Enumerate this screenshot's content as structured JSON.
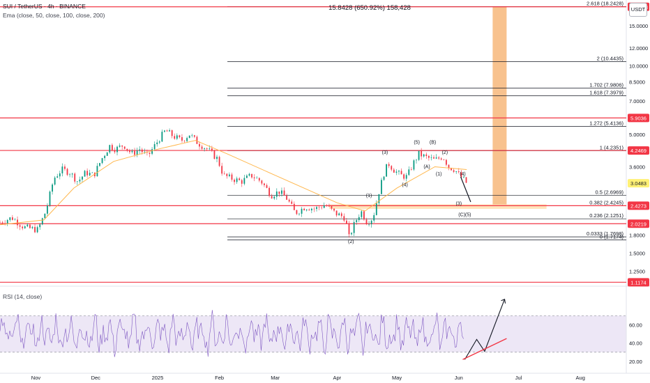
{
  "header": {
    "symbol_line": "SUI / TetherUS · 4h · BINANCE",
    "ema_line": "Ema (close, 50, close, 100, close, 200)",
    "top_stat": "15.8428 (650.92%) 158,428",
    "currency_button": "USDT"
  },
  "rsi_legend": "RSI (14, close)",
  "colors": {
    "candle_up": "#089981",
    "candle_down": "#f23645",
    "ema": "#ffb74d",
    "fib_line": "#131722",
    "support_line": "#f23645",
    "target_box": "#f7b77a",
    "rsi_line": "#7e57c2",
    "rsi_band": "#ede7f6",
    "rsi_ma": "#ffb74d"
  },
  "chart_data": {
    "type": "candlestick",
    "scale": "log",
    "ylim": [
      1.12,
      19.5
    ],
    "xlim": [
      "2024-10-14",
      "2025-08-24"
    ],
    "price_axis_ticks": [
      "18.2013",
      "15.0000",
      "12.0000",
      "10.0000",
      "8.5000",
      "7.0000",
      "5.9036",
      "5.0000",
      "4.2469",
      "3.6000",
      "3.0483",
      "2.4273",
      "2.0219",
      "1.8000",
      "1.5000",
      "1.2500",
      "1.1174"
    ],
    "time_axis": [
      {
        "date": "2024-11-01",
        "label": "Nov"
      },
      {
        "date": "2024-12-01",
        "label": "Dec"
      },
      {
        "date": "2025-01-01",
        "label": "2025"
      },
      {
        "date": "2025-02-01",
        "label": "Feb"
      },
      {
        "date": "2025-03-01",
        "label": "Mar"
      },
      {
        "date": "2025-04-01",
        "label": "Apr"
      },
      {
        "date": "2025-05-01",
        "label": "May"
      },
      {
        "date": "2025-06-01",
        "label": "Jun"
      },
      {
        "date": "2025-07-01",
        "label": "Jul"
      },
      {
        "date": "2025-08-01",
        "label": "Aug"
      }
    ],
    "price_path": [
      [
        "2024-10-14",
        2.05
      ],
      [
        "2024-10-20",
        2.15
      ],
      [
        "2024-10-26",
        1.95
      ],
      [
        "2024-11-02",
        1.9
      ],
      [
        "2024-11-06",
        2.3
      ],
      [
        "2024-11-10",
        3.2
      ],
      [
        "2024-11-14",
        3.5
      ],
      [
        "2024-11-18",
        3.4
      ],
      [
        "2024-11-22",
        3.1
      ],
      [
        "2024-11-26",
        3.4
      ],
      [
        "2024-11-30",
        3.3
      ],
      [
        "2024-12-04",
        3.9
      ],
      [
        "2024-12-08",
        4.45
      ],
      [
        "2024-12-11",
        4.3
      ],
      [
        "2024-12-15",
        4.5
      ],
      [
        "2024-12-19",
        4.1
      ],
      [
        "2024-12-23",
        4.3
      ],
      [
        "2024-12-27",
        4.0
      ],
      [
        "2025-01-02",
        4.8
      ],
      [
        "2025-01-05",
        5.2
      ],
      [
        "2025-01-09",
        4.9
      ],
      [
        "2025-01-13",
        4.7
      ],
      [
        "2025-01-17",
        5.0
      ],
      [
        "2025-01-21",
        4.6
      ],
      [
        "2025-01-26",
        4.3
      ],
      [
        "2025-01-31",
        3.9
      ],
      [
        "2025-02-03",
        3.3
      ],
      [
        "2025-02-07",
        3.2
      ],
      [
        "2025-02-12",
        3.1
      ],
      [
        "2025-02-17",
        3.3
      ],
      [
        "2025-02-22",
        3.1
      ],
      [
        "2025-02-27",
        2.7
      ],
      [
        "2025-03-03",
        2.8
      ],
      [
        "2025-03-07",
        2.6
      ],
      [
        "2025-03-11",
        2.25
      ],
      [
        "2025-03-16",
        2.4
      ],
      [
        "2025-03-21",
        2.35
      ],
      [
        "2025-03-26",
        2.45
      ],
      [
        "2025-03-31",
        2.25
      ],
      [
        "2025-04-05",
        2.15
      ],
      [
        "2025-04-07",
        1.76
      ],
      [
        "2025-04-10",
        2.05
      ],
      [
        "2025-04-13",
        2.3
      ],
      [
        "2025-04-16",
        2.05
      ],
      [
        "2025-04-19",
        2.15
      ],
      [
        "2025-04-22",
        2.8
      ],
      [
        "2025-04-25",
        3.5
      ],
      [
        "2025-04-27",
        3.7
      ],
      [
        "2025-04-30",
        3.45
      ],
      [
        "2025-05-03",
        3.3
      ],
      [
        "2025-05-06",
        3.25
      ],
      [
        "2025-05-09",
        3.7
      ],
      [
        "2025-05-12",
        4.1
      ],
      [
        "2025-05-16",
        3.95
      ],
      [
        "2025-05-20",
        3.85
      ],
      [
        "2025-05-24",
        4.0
      ],
      [
        "2025-05-27",
        3.6
      ],
      [
        "2025-05-30",
        3.5
      ],
      [
        "2025-06-02",
        3.25
      ],
      [
        "2025-06-05",
        3.05
      ]
    ],
    "ema_path": [
      [
        "2024-10-14",
        2.0
      ],
      [
        "2024-11-05",
        2.1
      ],
      [
        "2024-11-20",
        2.9
      ],
      [
        "2024-12-10",
        3.8
      ],
      [
        "2025-01-01",
        4.3
      ],
      [
        "2025-01-20",
        4.7
      ],
      [
        "2025-02-05",
        4.1
      ],
      [
        "2025-03-01",
        3.3
      ],
      [
        "2025-04-01",
        2.5
      ],
      [
        "2025-04-15",
        2.3
      ],
      [
        "2025-05-01",
        2.9
      ],
      [
        "2025-05-20",
        3.6
      ],
      [
        "2025-06-05",
        3.5
      ]
    ],
    "fib_levels": [
      {
        "label": "2.618 (18.2428)",
        "price": 18.2428
      },
      {
        "label": "2 (10.4435)",
        "price": 10.4435
      },
      {
        "label": "1.702 (7.9806)",
        "price": 7.9806
      },
      {
        "label": "1.618 (7.3979)",
        "price": 7.3979
      },
      {
        "label": "1.272 (5.4136)",
        "price": 5.4136
      },
      {
        "label": "1 (4.2351)",
        "price": 4.2351
      },
      {
        "label": "0.5 (2.6969)",
        "price": 2.6969
      },
      {
        "label": "0.382 (2.4245)",
        "price": 2.4245
      },
      {
        "label": "0.236 (2.1251)",
        "price": 2.1251
      },
      {
        "label": "0.0333 (1.7698)",
        "price": 1.7698
      },
      {
        "label": "0 (1.7174)",
        "price": 1.7174
      }
    ],
    "fib_start": "2025-02-05",
    "horizontal_levels": [
      {
        "label": "18.2013",
        "price": 18.2013,
        "color": "#f23645"
      },
      {
        "label": "5.9036",
        "price": 5.9036,
        "color": "#f23645"
      },
      {
        "label": "4.2469",
        "price": 4.2469,
        "color": "#f23645"
      },
      {
        "label": "3.0483",
        "price": 3.0483,
        "color": "#fff176"
      },
      {
        "label": "2.4273",
        "price": 2.4273,
        "color": "#f23645"
      },
      {
        "label": "2.0219",
        "price": 2.0219,
        "color": "#f23645"
      },
      {
        "label": "1.1174",
        "price": 1.1174,
        "color": "#f23645"
      }
    ],
    "target_box": {
      "x0": "2025-06-18",
      "x1": "2025-06-25",
      "y0": 2.43,
      "y1": 18.24
    },
    "support_zone": {
      "x0": "2025-03-28",
      "x1": "2025-07-15",
      "y0": 2.35,
      "y1": 2.46
    },
    "wave_labels": [
      {
        "text": "(3)",
        "date": "2025-04-25",
        "price": 4.1
      },
      {
        "text": "(5)",
        "date": "2025-05-11",
        "price": 4.55
      },
      {
        "text": "(B)",
        "date": "2025-05-19",
        "price": 4.55
      },
      {
        "text": "(2)",
        "date": "2025-05-25",
        "price": 4.1
      },
      {
        "text": "(A)",
        "date": "2025-05-16",
        "price": 3.55
      },
      {
        "text": "(1)",
        "date": "2025-05-22",
        "price": 3.3
      },
      {
        "text": "(4)",
        "date": "2025-06-03",
        "price": 3.3
      },
      {
        "text": "(4)",
        "date": "2025-05-05",
        "price": 2.95
      },
      {
        "text": "(1)",
        "date": "2025-04-17",
        "price": 2.65
      },
      {
        "text": "(3)",
        "date": "2025-06-01",
        "price": 2.44
      },
      {
        "text": "(C)(5)",
        "date": "2025-06-04",
        "price": 2.18
      },
      {
        "text": "(2)",
        "date": "2025-04-08",
        "price": 1.66
      }
    ],
    "projection_path": [
      [
        "2025-06-02",
        3.25
      ],
      [
        "2025-06-07",
        2.52
      ]
    ],
    "rsi_ylim": [
      10,
      100
    ],
    "rsi_ticks": [
      60,
      40,
      20
    ],
    "rsi_band": [
      30,
      70
    ],
    "rsi_projection": [
      [
        "2025-06-04",
        22
      ],
      [
        "2025-06-10",
        44
      ],
      [
        "2025-06-14",
        31
      ],
      [
        "2025-06-24",
        88
      ]
    ],
    "rsi_trendline": [
      [
        "2025-06-03",
        22
      ],
      [
        "2025-06-25",
        45
      ]
    ]
  }
}
